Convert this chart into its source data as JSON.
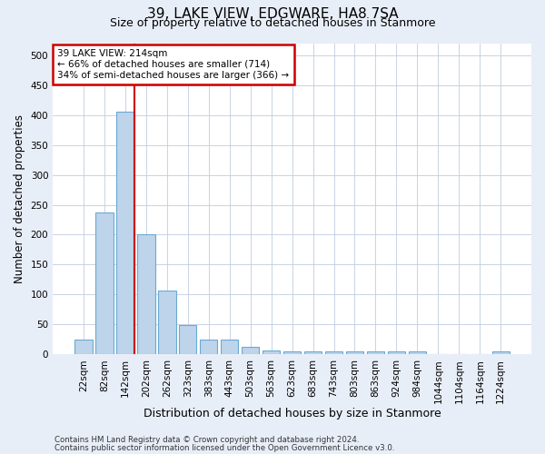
{
  "title1": "39, LAKE VIEW, EDGWARE, HA8 7SA",
  "title2": "Size of property relative to detached houses in Stanmore",
  "xlabel": "Distribution of detached houses by size in Stanmore",
  "ylabel": "Number of detached properties",
  "bar_labels": [
    "22sqm",
    "82sqm",
    "142sqm",
    "202sqm",
    "262sqm",
    "323sqm",
    "383sqm",
    "443sqm",
    "503sqm",
    "563sqm",
    "623sqm",
    "683sqm",
    "743sqm",
    "803sqm",
    "863sqm",
    "924sqm",
    "984sqm",
    "1044sqm",
    "1104sqm",
    "1164sqm",
    "1224sqm"
  ],
  "bar_heights": [
    25,
    237,
    405,
    200,
    106,
    49,
    25,
    25,
    12,
    7,
    5,
    5,
    5,
    5,
    5,
    5,
    5,
    0,
    0,
    0,
    5
  ],
  "bar_color": "#bdd4ea",
  "bar_edge_color": "#6aaad4",
  "vline_bar_index": 2,
  "vline_color": "#cc0000",
  "ylim": [
    0,
    520
  ],
  "yticks": [
    0,
    50,
    100,
    150,
    200,
    250,
    300,
    350,
    400,
    450,
    500
  ],
  "annotation_text": "39 LAKE VIEW: 214sqm\n← 66% of detached houses are smaller (714)\n34% of semi-detached houses are larger (366) →",
  "annotation_box_color": "white",
  "annotation_box_edge": "#cc0000",
  "footer1": "Contains HM Land Registry data © Crown copyright and database right 2024.",
  "footer2": "Contains public sector information licensed under the Open Government Licence v3.0.",
  "background_color": "#e8eef8",
  "plot_bg_color": "white",
  "grid_color": "#c0cce0"
}
